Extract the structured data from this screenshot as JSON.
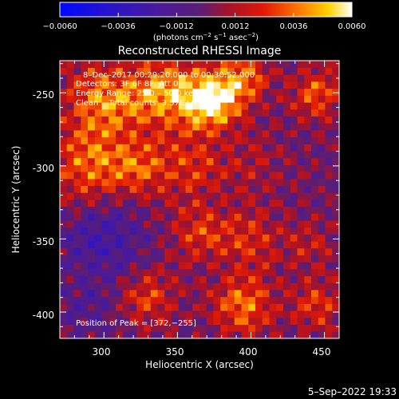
{
  "chart_data": {
    "type": "heatmap",
    "title": "Reconstructed RHESSI Image",
    "xlabel": "Heliocentric X (arcsec)",
    "ylabel": "Heliocentric Y (arcsec)",
    "xlim": [
      270,
      460
    ],
    "ylim": [
      -418,
      -228
    ],
    "x_ticks": [
      300,
      350,
      400,
      450
    ],
    "y_ticks": [
      -250,
      -300,
      -350,
      -400
    ],
    "colorbar": {
      "colormap": "rhessi-rainbow",
      "range": [
        -0.006,
        0.006
      ],
      "tick_labels": [
        "−0.0060",
        "−0.0036",
        "−0.0012",
        "0.0012",
        "0.0036",
        "0.0060"
      ],
      "unit_prefix": "(photons cm",
      "unit_exp1": "−2",
      "unit_mid": " s",
      "unit_exp2": "−1",
      "unit_mid2": " asec",
      "unit_exp3": "−2",
      "unit_suffix": ")"
    },
    "annotations": {
      "time": "8–Dec–2017 00:29:20.000 to 00:30:52.000",
      "detectors": "Detectors: 3F 6F 8F, Att 0",
      "energy": "Energy Range: 25.0 – 50.0 keV",
      "clean": "Clean    Total counts: 3.57E+03",
      "peak": "Position of Peak = [372,−255]"
    },
    "peak_position": [
      372,
      -255
    ],
    "grid_size": [
      40,
      40
    ],
    "sources": [
      {
        "x": 372,
        "y": -255,
        "amp": 0.0062,
        "sigma": 14
      },
      {
        "x": 340,
        "y": -250,
        "amp": 0.004,
        "sigma": 16
      },
      {
        "x": 300,
        "y": -255,
        "amp": 0.0038,
        "sigma": 18
      },
      {
        "x": 395,
        "y": -240,
        "amp": 0.0032,
        "sigma": 12
      },
      {
        "x": 290,
        "y": -300,
        "amp": 0.0034,
        "sigma": 18
      },
      {
        "x": 325,
        "y": -300,
        "amp": 0.0028,
        "sigma": 14
      },
      {
        "x": 360,
        "y": -300,
        "amp": 0.0022,
        "sigma": 15
      },
      {
        "x": 445,
        "y": -250,
        "amp": 0.003,
        "sigma": 12
      },
      {
        "x": 400,
        "y": -300,
        "amp": 0.0012,
        "sigma": 14
      },
      {
        "x": 365,
        "y": -345,
        "amp": 0.0024,
        "sigma": 14
      },
      {
        "x": 400,
        "y": -350,
        "amp": 0.0022,
        "sigma": 14
      },
      {
        "x": 440,
        "y": -355,
        "amp": 0.0014,
        "sigma": 12
      },
      {
        "x": 330,
        "y": -390,
        "amp": 0.0026,
        "sigma": 13
      },
      {
        "x": 395,
        "y": -395,
        "amp": 0.0036,
        "sigma": 14
      },
      {
        "x": 445,
        "y": -395,
        "amp": 0.0024,
        "sigma": 12
      },
      {
        "x": 300,
        "y": -350,
        "amp": -0.0022,
        "sigma": 20
      },
      {
        "x": 290,
        "y": -400,
        "amp": -0.0012,
        "sigma": 14
      }
    ],
    "ripple_amplitude": 0.0018,
    "ripple_wavelength": 18
  },
  "footer": {
    "timestamp": "5–Sep–2022 19:33"
  }
}
